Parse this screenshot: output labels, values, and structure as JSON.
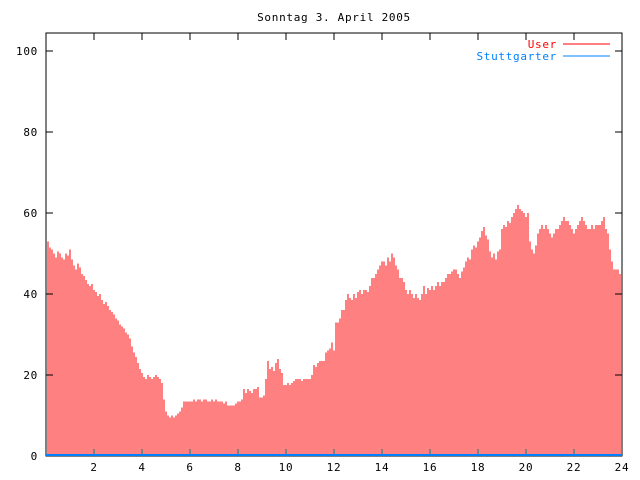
{
  "window": {
    "background": "#ffffff"
  },
  "chart_data": {
    "type": "bar",
    "style": "gnuplot-impulses",
    "title": "Sonntag 3. April 2005",
    "xlabel": "",
    "ylabel": "",
    "xlim": [
      0,
      24
    ],
    "ylim": [
      0,
      104
    ],
    "xticks": [
      2,
      4,
      6,
      8,
      10,
      12,
      14,
      16,
      18,
      20,
      22,
      24
    ],
    "yticks": [
      0,
      20,
      40,
      60,
      80,
      100
    ],
    "grid": false,
    "legend_position": "top-right-inside",
    "axis_color": "#000000",
    "background_color": "#ffffff",
    "x_unit": "hours",
    "x_start": 0.0833,
    "x_step": 0.0833,
    "series": [
      {
        "name": "User",
        "color": "#ff0000",
        "plot_style": "impulses",
        "values": [
          53,
          51.5,
          51,
          50,
          49,
          50.5,
          50,
          49,
          48.5,
          50,
          49.5,
          51,
          48.5,
          47,
          46,
          47.5,
          46.5,
          45,
          44.5,
          43.5,
          42.5,
          42,
          42.5,
          41,
          40.5,
          39.5,
          40,
          38.5,
          37.5,
          38,
          37,
          36,
          35.5,
          35,
          34,
          33.5,
          32.5,
          32,
          31.5,
          30.5,
          30,
          29,
          27,
          25.5,
          24.5,
          23,
          21.5,
          20.5,
          19.5,
          19,
          20,
          19.5,
          19,
          19.5,
          20,
          19.5,
          19,
          18,
          14,
          11,
          10,
          9.5,
          10,
          9.5,
          10,
          10.5,
          11,
          12,
          13.5,
          13.5,
          13.5,
          13.5,
          13.5,
          14,
          13.5,
          14,
          14,
          13.5,
          14,
          14,
          13.5,
          13.5,
          14,
          13.5,
          14,
          13.5,
          13.5,
          13.5,
          13,
          13.5,
          12.5,
          12.5,
          12.5,
          12.5,
          13,
          13.5,
          13.5,
          14,
          16.5,
          15.5,
          16.5,
          16,
          15.5,
          16.5,
          16.5,
          17,
          14.5,
          14.5,
          15,
          19,
          23.5,
          21.5,
          22,
          21,
          23,
          24,
          21.5,
          20.5,
          17.5,
          17.5,
          18,
          17.5,
          18,
          18.5,
          19,
          19,
          19,
          18.5,
          19,
          19,
          19,
          19,
          20,
          22.5,
          22,
          23,
          23.5,
          23.5,
          23.5,
          25.5,
          26,
          26.5,
          28,
          26,
          33,
          33,
          34,
          36,
          36,
          38.5,
          40,
          39,
          38.5,
          40,
          39,
          40.5,
          41,
          40,
          41,
          41,
          40.5,
          42,
          44,
          44,
          45,
          46,
          47,
          48,
          48,
          47,
          49,
          48,
          50,
          49,
          47,
          46,
          44,
          44,
          43,
          41,
          40,
          41,
          40,
          39,
          40,
          39,
          38.5,
          40,
          42,
          40,
          41.5,
          41,
          42,
          41,
          42,
          43,
          42,
          43,
          43,
          44,
          45,
          45,
          45.5,
          46,
          46,
          45,
          44,
          45.5,
          46.5,
          48,
          49,
          48.5,
          51,
          52,
          51.5,
          53,
          54,
          55.5,
          56.5,
          54.5,
          53.5,
          50.5,
          49,
          50,
          48.5,
          50.5,
          51,
          56,
          57,
          56.5,
          58,
          57.5,
          59,
          60,
          61,
          62,
          61,
          60.5,
          60,
          59,
          60,
          53,
          51,
          50,
          52,
          55,
          56,
          57,
          56,
          57,
          56,
          55,
          54,
          55,
          56,
          56,
          57,
          58,
          59,
          58,
          58,
          57,
          56,
          55,
          56,
          57,
          58,
          59,
          58,
          57,
          56,
          56,
          57,
          56,
          57,
          57,
          57,
          58,
          59,
          56,
          55,
          51,
          48,
          46,
          46,
          46,
          45,
          46
        ]
      },
      {
        "name": "Stuttgarter",
        "color": "#0080ff",
        "plot_style": "line",
        "constant_value": 0
      }
    ]
  }
}
